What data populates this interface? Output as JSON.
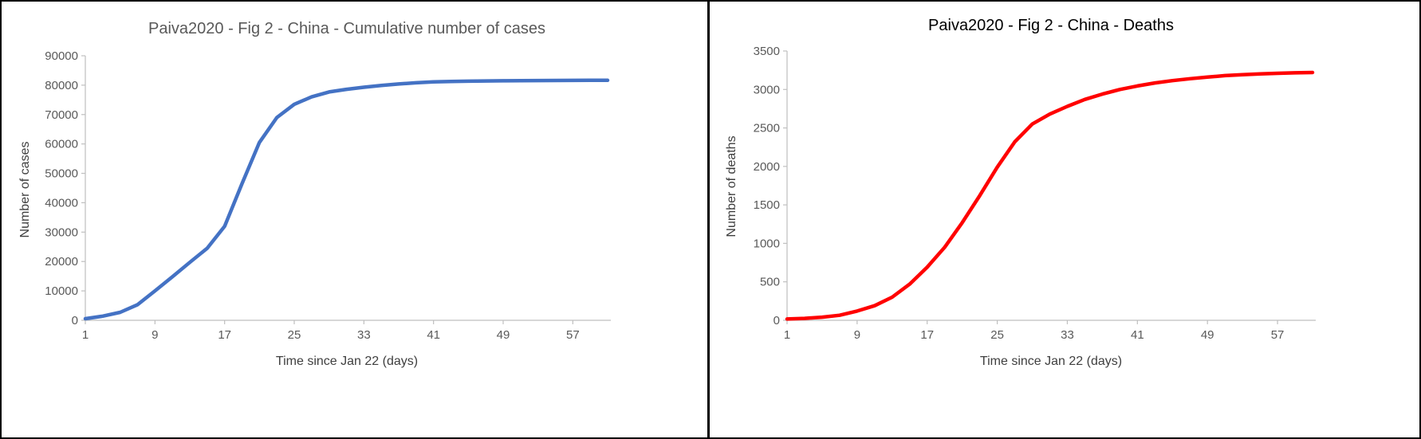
{
  "figure": {
    "description_left": "Paiva2020 - Fig 2 - China - Cumulative number of cases",
    "description_right": "Paiva2020 - Fig 2 - China - Deaths"
  },
  "chart_data": [
    {
      "type": "line",
      "title": "Paiva2020 - Fig 2 - China - Cumulative number of cases",
      "title_color": "#595959",
      "line_color": "#4472C4",
      "xlabel": "Time since Jan 22 (days)",
      "ylabel": "Number of cases",
      "xlim": [
        1,
        61
      ],
      "ylim": [
        0,
        90000
      ],
      "xticks": [
        1,
        9,
        17,
        25,
        33,
        41,
        49,
        57
      ],
      "yticks": [
        0,
        10000,
        20000,
        30000,
        40000,
        50000,
        60000,
        70000,
        80000,
        90000
      ],
      "grid": false,
      "legend": "none",
      "x": [
        1,
        3,
        5,
        7,
        9,
        11,
        13,
        15,
        17,
        19,
        21,
        23,
        25,
        27,
        29,
        31,
        33,
        35,
        37,
        39,
        41,
        43,
        45,
        47,
        49,
        51,
        53,
        55,
        57,
        59,
        61
      ],
      "y": [
        550,
        1400,
        2700,
        5300,
        10000,
        14800,
        19700,
        24500,
        32000,
        46500,
        60500,
        69000,
        73500,
        76000,
        77700,
        78600,
        79300,
        79900,
        80400,
        80800,
        81100,
        81250,
        81350,
        81430,
        81480,
        81520,
        81560,
        81590,
        81620,
        81640,
        81660
      ]
    },
    {
      "type": "line",
      "title": "Paiva2020 - Fig 2 - China - Deaths",
      "title_color": "#000000",
      "line_color": "#FF0000",
      "xlabel": "Time since Jan 22 (days)",
      "ylabel": "Number of deaths",
      "xlim": [
        1,
        61
      ],
      "ylim": [
        0,
        3500
      ],
      "xticks": [
        1,
        9,
        17,
        25,
        33,
        41,
        49,
        57
      ],
      "yticks": [
        0,
        500,
        1000,
        1500,
        2000,
        2500,
        3000,
        3500
      ],
      "grid": false,
      "legend": "none",
      "x": [
        1,
        3,
        5,
        7,
        9,
        11,
        13,
        15,
        17,
        19,
        21,
        23,
        25,
        27,
        29,
        31,
        33,
        35,
        37,
        39,
        41,
        43,
        45,
        47,
        49,
        51,
        53,
        55,
        57,
        59,
        61
      ],
      "y": [
        17,
        25,
        40,
        65,
        120,
        190,
        300,
        470,
        690,
        950,
        1270,
        1620,
        1990,
        2320,
        2550,
        2680,
        2780,
        2870,
        2940,
        3000,
        3045,
        3085,
        3115,
        3140,
        3160,
        3180,
        3192,
        3202,
        3210,
        3216,
        3220
      ]
    }
  ]
}
